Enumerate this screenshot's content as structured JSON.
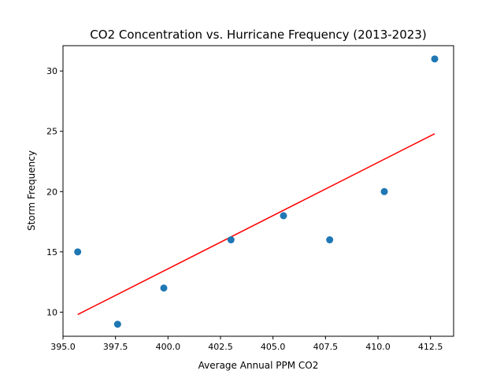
{
  "chart_data": {
    "type": "scatter",
    "title": "CO2 Concentration vs. Hurricane Frequency (2013-2023)",
    "xlabel": "Average Annual PPM CO2",
    "ylabel": "Storm Frequency",
    "xlim": [
      395.0,
      413.6
    ],
    "ylim": [
      8.0,
      32.1
    ],
    "x_ticks": [
      395.0,
      397.5,
      400.0,
      402.5,
      405.0,
      407.5,
      410.0,
      412.5
    ],
    "x_tick_labels": [
      "395.0",
      "397.5",
      "400.0",
      "402.5",
      "405.0",
      "407.5",
      "410.0",
      "412.5"
    ],
    "y_ticks": [
      10,
      15,
      20,
      25,
      30
    ],
    "y_tick_labels": [
      "10",
      "15",
      "20",
      "25",
      "30"
    ],
    "grid": false,
    "series": [
      {
        "kind": "points",
        "color": "#1f77b4",
        "x": [
          395.7,
          397.6,
          399.8,
          403.0,
          405.5,
          407.7,
          410.3,
          412.7
        ],
        "y": [
          15,
          9,
          12,
          16,
          18,
          16,
          20,
          31
        ]
      },
      {
        "kind": "trendline",
        "color": "#ff0000",
        "x": [
          395.7,
          412.7
        ],
        "y": [
          9.8,
          24.8
        ]
      }
    ]
  }
}
